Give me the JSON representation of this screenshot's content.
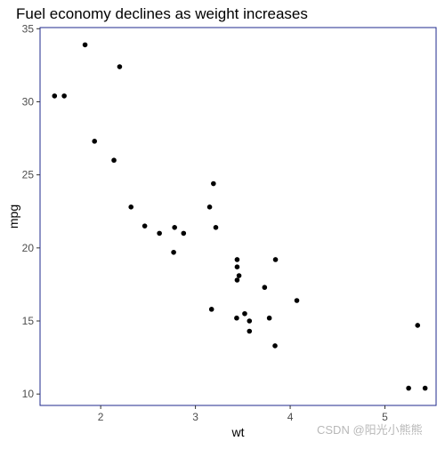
{
  "chart_data": {
    "type": "scatter",
    "title": "Fuel economy declines as weight increases",
    "xlabel": "wt",
    "ylabel": "mpg",
    "xlim": [
      1.36,
      5.54
    ],
    "ylim": [
      9.22,
      35.08
    ],
    "xticks": [
      2,
      3,
      4,
      5
    ],
    "yticks": [
      10,
      15,
      20,
      25,
      30,
      35
    ],
    "grid": false,
    "point_color": "#000000",
    "frame_color": "#1f2a8c",
    "points": [
      {
        "x": 2.62,
        "y": 21.0
      },
      {
        "x": 2.875,
        "y": 21.0
      },
      {
        "x": 2.32,
        "y": 22.8
      },
      {
        "x": 3.215,
        "y": 21.4
      },
      {
        "x": 3.44,
        "y": 18.7
      },
      {
        "x": 3.46,
        "y": 18.1
      },
      {
        "x": 3.57,
        "y": 14.3
      },
      {
        "x": 3.19,
        "y": 24.4
      },
      {
        "x": 3.15,
        "y": 22.8
      },
      {
        "x": 3.44,
        "y": 19.2
      },
      {
        "x": 3.44,
        "y": 17.8
      },
      {
        "x": 4.07,
        "y": 16.4
      },
      {
        "x": 3.73,
        "y": 17.3
      },
      {
        "x": 3.78,
        "y": 15.2
      },
      {
        "x": 5.25,
        "y": 10.4
      },
      {
        "x": 5.424,
        "y": 10.4
      },
      {
        "x": 5.345,
        "y": 14.7
      },
      {
        "x": 2.2,
        "y": 32.4
      },
      {
        "x": 1.615,
        "y": 30.4
      },
      {
        "x": 1.835,
        "y": 33.9
      },
      {
        "x": 2.465,
        "y": 21.5
      },
      {
        "x": 3.52,
        "y": 15.5
      },
      {
        "x": 3.435,
        "y": 15.2
      },
      {
        "x": 3.84,
        "y": 13.3
      },
      {
        "x": 3.845,
        "y": 19.2
      },
      {
        "x": 1.935,
        "y": 27.3
      },
      {
        "x": 2.14,
        "y": 26.0
      },
      {
        "x": 1.513,
        "y": 30.4
      },
      {
        "x": 3.17,
        "y": 15.8
      },
      {
        "x": 2.77,
        "y": 19.7
      },
      {
        "x": 3.57,
        "y": 15.0
      },
      {
        "x": 2.78,
        "y": 21.4
      }
    ]
  },
  "watermark": "CSDN @阳光小熊熊"
}
